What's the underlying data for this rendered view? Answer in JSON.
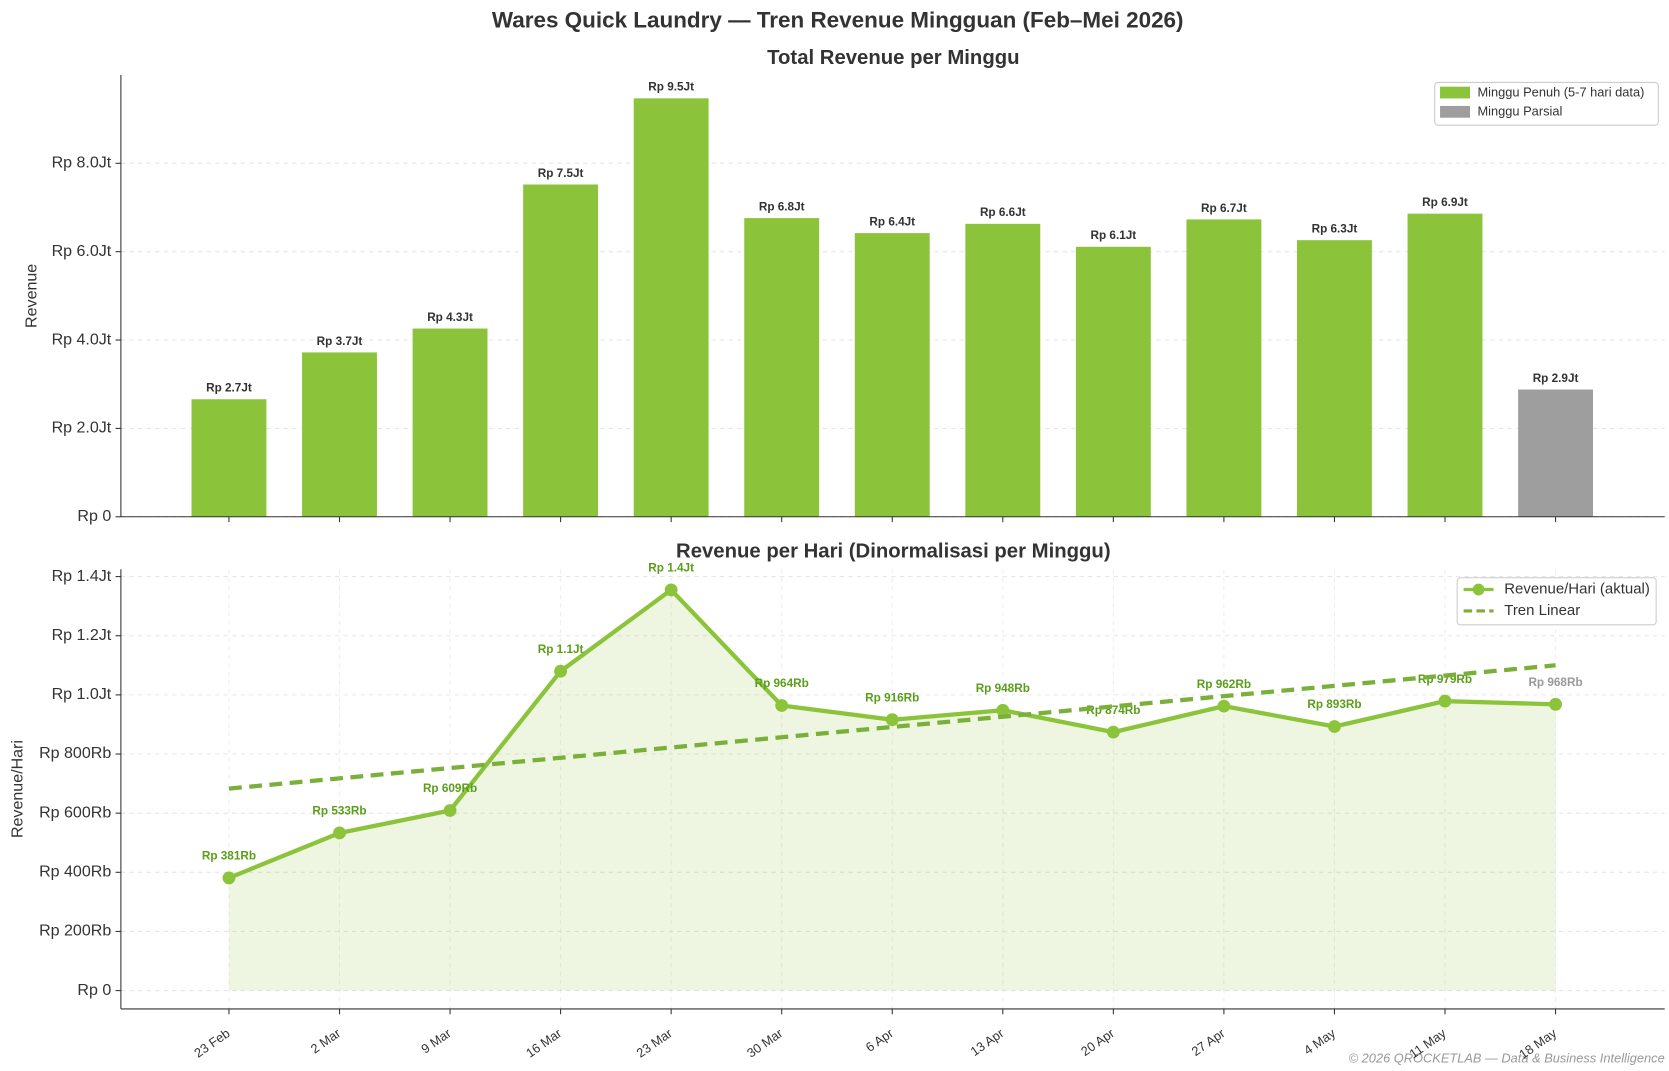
{
  "title": "Wares Quick Laundry — Tren Revenue Mingguan (Feb–Mei 2026)",
  "footer": "© 2026 QROCKETLAB — Data & Business Intelligence",
  "chart_data": [
    {
      "type": "bar",
      "title": "Total Revenue per Minggu",
      "ylabel": "Revenue",
      "ylim": [
        0,
        10000000
      ],
      "yticks": [
        {
          "value": 0,
          "label": "Rp 0"
        },
        {
          "value": 2000000,
          "label": "Rp 2.0Jt"
        },
        {
          "value": 4000000,
          "label": "Rp 4.0Jt"
        },
        {
          "value": 6000000,
          "label": "Rp 6.0Jt"
        },
        {
          "value": 8000000,
          "label": "Rp 8.0Jt"
        }
      ],
      "grid": true,
      "legend": "upper right",
      "series": [
        {
          "name": "Minggu Penuh (5-7 hari data)",
          "color": "#8bc43a",
          "values": [
            2660000,
            3720000,
            4260000,
            7520000,
            9470000,
            6760000,
            6420000,
            6630000,
            6110000,
            6730000,
            6260000,
            6860000,
            null
          ],
          "value_labels": [
            "Rp 2.7Jt",
            "Rp 3.7Jt",
            "Rp 4.3Jt",
            "Rp 7.5Jt",
            "Rp 9.5Jt",
            "Rp 6.8Jt",
            "Rp 6.4Jt",
            "Rp 6.6Jt",
            "Rp 6.1Jt",
            "Rp 6.7Jt",
            "Rp 6.3Jt",
            "Rp 6.9Jt",
            null
          ]
        },
        {
          "name": "Minggu Parsial",
          "color": "#9e9e9e",
          "values": [
            null,
            null,
            null,
            null,
            null,
            null,
            null,
            null,
            null,
            null,
            null,
            null,
            2880000
          ],
          "value_labels": [
            null,
            null,
            null,
            null,
            null,
            null,
            null,
            null,
            null,
            null,
            null,
            null,
            "Rp 2.9Jt"
          ]
        }
      ]
    },
    {
      "type": "line",
      "title": "Revenue per Hari (Dinormalisasi per Minggu)",
      "ylabel": "Revenue/Hari",
      "categories": [
        "23 Feb",
        "2 Mar",
        "9 Mar",
        "16 Mar",
        "23 Mar",
        "30 Mar",
        "6 Apr",
        "13 Apr",
        "20 Apr",
        "27 Apr",
        "4 May",
        "11 May",
        "18 May"
      ],
      "ylim": [
        -62000,
        1425000
      ],
      "yticks": [
        {
          "value": 0,
          "label": "Rp 0"
        },
        {
          "value": 200000,
          "label": "Rp 200Rb"
        },
        {
          "value": 400000,
          "label": "Rp 400Rb"
        },
        {
          "value": 600000,
          "label": "Rp 600Rb"
        },
        {
          "value": 800000,
          "label": "Rp 800Rb"
        },
        {
          "value": 1000000,
          "label": "Rp 1.0Jt"
        },
        {
          "value": 1200000,
          "label": "Rp 1.2Jt"
        },
        {
          "value": 1400000,
          "label": "Rp 1.4Jt"
        }
      ],
      "grid": true,
      "legend": "upper right",
      "series": [
        {
          "name": "Revenue/Hari (aktual)",
          "color": "#8bc43a",
          "fill": true,
          "markers": true,
          "values": [
            381000,
            533000,
            609000,
            1080000,
            1355000,
            964000,
            916000,
            948000,
            874000,
            962000,
            893000,
            979000,
            968000
          ],
          "value_labels": [
            "Rp 381Rb",
            "Rp 533Rb",
            "Rp 609Rb",
            "Rp 1.1Jt",
            "Rp 1.4Jt",
            "Rp 964Rb",
            "Rp 916Rb",
            "Rp 948Rb",
            "Rp 874Rb",
            "Rp 962Rb",
            "Rp 893Rb",
            "Rp 979Rb",
            "Rp 968Rb"
          ]
        },
        {
          "name": "Tren Linear",
          "color": "#7ab03a",
          "line_style": "dashed",
          "values": [
            683000,
            717750,
            752500,
            787250,
            822000,
            856750,
            891500,
            926250,
            961000,
            995750,
            1030500,
            1065250,
            1100000
          ]
        }
      ]
    }
  ]
}
